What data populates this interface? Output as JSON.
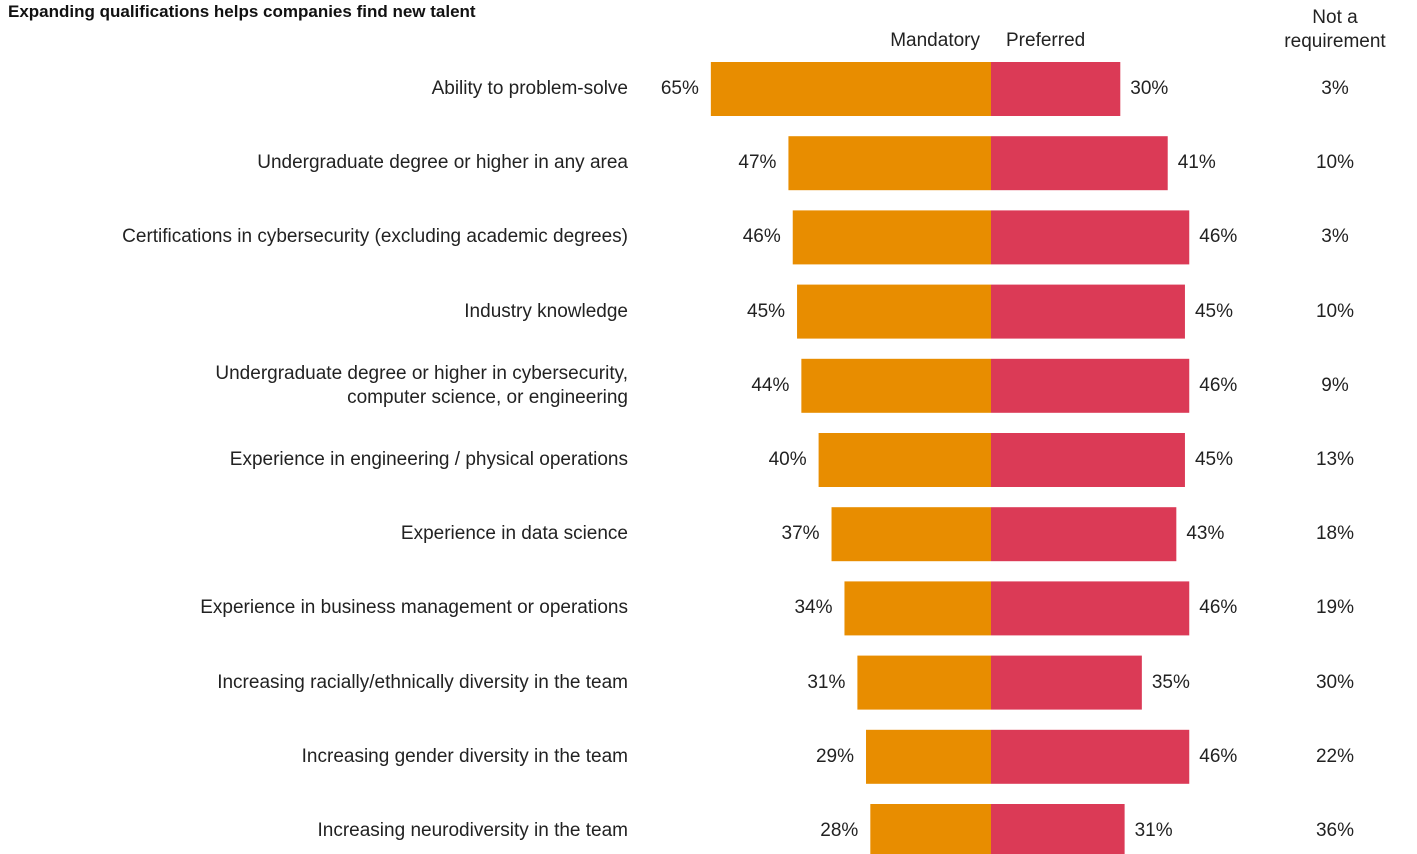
{
  "chart_data": {
    "type": "diverging_bar",
    "title": "Expanding qualifications helps companies find new talent",
    "categories": [
      "Ability to problem-solve",
      "Undergraduate degree or higher in any area",
      "Certifications in cybersecurity (excluding academic degrees)",
      "Industry knowledge",
      "Undergraduate degree or higher in cybersecurity,\ncomputer science, or engineering",
      "Experience in engineering / physical operations",
      "Experience in data science",
      "Experience in business management or operations",
      "Increasing racially/ethnically diversity in the team",
      "Increasing gender diversity in the team",
      "Increasing neurodiversity in the team"
    ],
    "series": [
      {
        "name": "Mandatory",
        "color": "#e88d00",
        "values": [
          65,
          47,
          46,
          45,
          44,
          40,
          37,
          34,
          31,
          29,
          28
        ],
        "value_labels": [
          "65%",
          "47%",
          "46%",
          "45%",
          "44%",
          "40%",
          "37%",
          "34%",
          "31%",
          "29%",
          "28%"
        ]
      },
      {
        "name": "Preferred",
        "color": "#db3a56",
        "values": [
          30,
          41,
          46,
          45,
          46,
          45,
          43,
          46,
          35,
          46,
          31
        ],
        "value_labels": [
          "30%",
          "41%",
          "46%",
          "45%",
          "46%",
          "45%",
          "43%",
          "46%",
          "35%",
          "46%",
          "31%"
        ]
      },
      {
        "name": "Not a\nrequirement",
        "values": [
          3,
          10,
          3,
          10,
          9,
          13,
          18,
          19,
          30,
          22,
          36
        ],
        "value_labels": [
          "3%",
          "10%",
          "3%",
          "10%",
          "9%",
          "13%",
          "18%",
          "19%",
          "30%",
          "22%",
          "36%"
        ]
      }
    ]
  }
}
